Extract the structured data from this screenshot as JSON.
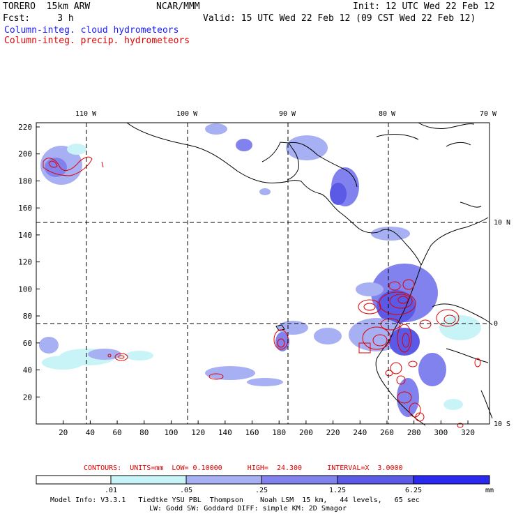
{
  "header": {
    "model": "TORERO  15km ARW",
    "org": "NCAR/MMM",
    "init": "Init: 12 UTC Wed 22 Feb 12",
    "fcst": "Fcst:     3 h",
    "valid": "Valid: 15 UTC Wed 22 Feb 12 (09 CST Wed 22 Feb 12)",
    "field1": "Column-integ. cloud hydrometeors",
    "field2": "Column-integ. precip. hydrometeors"
  },
  "colors": {
    "field1_text": "#1a1aff",
    "field2_text": "#e00000",
    "contour": "#e00000",
    "coast": "#000000",
    "shade": [
      "#ffffff",
      "#c8f4f8",
      "#a8b0f4",
      "#8282ee",
      "#5a5ae6",
      "#2a2aee"
    ]
  },
  "map": {
    "lon_labels": [
      "110 W",
      "100 W",
      "90 W",
      "80 W",
      "70 W"
    ],
    "lat_labels": [
      "10 N",
      "0",
      "10 S"
    ],
    "y_ticks": [
      "220",
      "200",
      "180",
      "160",
      "140",
      "120",
      "100",
      "80",
      "60",
      "40",
      "20"
    ],
    "x_ticks": [
      "20",
      "40",
      "60",
      "80",
      "100",
      "120",
      "140",
      "160",
      "180",
      "200",
      "220",
      "240",
      "260",
      "280",
      "300",
      "320"
    ]
  },
  "colorbar": {
    "contour_info": "CONTOURS:  UNITS=mm  LOW= 0.10000      HIGH=  24.300      INTERVAL=X  3.0000",
    "labels": [
      ".01",
      ".05",
      ".25",
      "1.25",
      "6.25"
    ],
    "units": "mm"
  },
  "footer": {
    "line1": "Model Info: V3.3.1   Tiedtke YSU PBL  Thompson    Noah LSM  15 km,   44 levels,   65 sec",
    "line2": "LW: Godd SW: Goddard DIFF: simple KM: 2D Smagor"
  }
}
